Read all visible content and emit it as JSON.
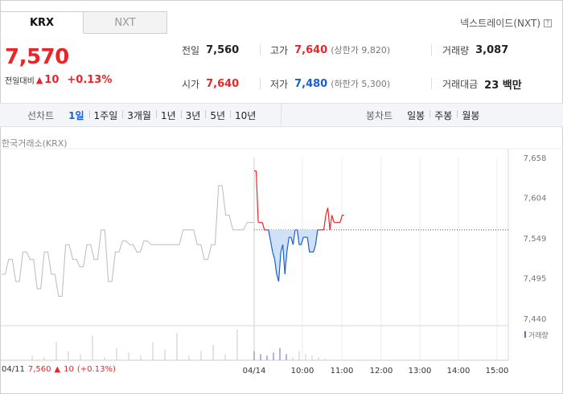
{
  "tabs": [
    {
      "label": "KRX",
      "active": true
    },
    {
      "label": "NXT",
      "active": false
    }
  ],
  "nextrade": {
    "label": "넥스트레이드(NXT)",
    "help": "?"
  },
  "price": {
    "current": "7,570",
    "change_label": "전일대비",
    "change_arrow": "▲",
    "change_value": "10",
    "change_pct": "+0.13%"
  },
  "stats": {
    "prev_close": {
      "label": "전일",
      "value": "7,560"
    },
    "high": {
      "label": "고가",
      "value": "7,640",
      "sub": "(상한가 9,820)"
    },
    "volume": {
      "label": "거래량",
      "value": "3,087"
    },
    "open": {
      "label": "시가",
      "value": "7,640"
    },
    "low": {
      "label": "저가",
      "value": "7,480",
      "sub": "(하한가 5,300)"
    },
    "amount": {
      "label": "거래대금",
      "value": "23 백만"
    }
  },
  "period_bar": {
    "line_label": "선차트",
    "line_items": [
      "1일",
      "1주일",
      "3개월",
      "1년",
      "3년",
      "5년",
      "10년"
    ],
    "line_selected": "1일",
    "candle_label": "봉차트",
    "candle_items": [
      "일봉",
      "주봉",
      "월봉"
    ]
  },
  "exchange_label": "한국거래소(KRX)",
  "volume_legend": "거래량",
  "footer": {
    "date": "04/11",
    "price": "7,560",
    "arrow": "▲",
    "change": "10",
    "pct": "(+0.13%)"
  },
  "colors": {
    "up": "#e8262a",
    "down": "#1a5fd6",
    "accent": "#1a5fd6"
  },
  "chart_data": {
    "type": "line",
    "title": "",
    "y_ticks": [
      7658,
      7604,
      7549,
      7495,
      7440
    ],
    "ylim": [
      7440,
      7658
    ],
    "prev_close": 7560,
    "x_tick_labels": [
      "04/14",
      "10:00",
      "11:00",
      "12:00",
      "13:00",
      "14:00",
      "15:00"
    ],
    "previous_day": {
      "name": "04/11",
      "values": [
        7500,
        7500,
        7520,
        7520,
        7490,
        7490,
        7530,
        7530,
        7520,
        7520,
        7480,
        7480,
        7530,
        7530,
        7500,
        7500,
        7470,
        7470,
        7540,
        7540,
        7520,
        7520,
        7510,
        7510,
        7540,
        7540,
        7520,
        7520,
        7560,
        7560,
        7490,
        7490,
        7530,
        7530,
        7545,
        7545,
        7540,
        7540,
        7530,
        7530,
        7545,
        7545,
        7540,
        7540,
        7540,
        7540,
        7540,
        7540,
        7540,
        7540,
        7540,
        7560,
        7560,
        7560,
        7560,
        7540,
        7540,
        7520,
        7520,
        7540,
        7540,
        7620,
        7620,
        7580,
        7580,
        7560,
        7560,
        7560,
        7560,
        7570,
        7570,
        7570
      ]
    },
    "today": {
      "name": "04/14",
      "values": [
        7640,
        7640,
        7570,
        7570,
        7570,
        7560,
        7560,
        7560,
        7545,
        7530,
        7520,
        7500,
        7490,
        7530,
        7540,
        7500,
        7530,
        7550,
        7550,
        7540,
        7560,
        7560,
        7540,
        7540,
        7550,
        7550,
        7550,
        7530,
        7530,
        7530,
        7540,
        7560,
        7560,
        7560,
        7560,
        7580,
        7590,
        7560,
        7580,
        7570,
        7570,
        7570,
        7570,
        7580,
        7580
      ]
    },
    "volume_bars": [
      0.15,
      0.1,
      0.6,
      0.3,
      0.2,
      0.8,
      0.1,
      0.4,
      0.25,
      0.15,
      0.6,
      0.35,
      0.9,
      0.15,
      0.3,
      0.5,
      0.2,
      1.0,
      0.3,
      0.2,
      0.15,
      0.25,
      0.4,
      0.2,
      0.1,
      0.3,
      0.2,
      0.15,
      0.1,
      0.05
    ]
  }
}
